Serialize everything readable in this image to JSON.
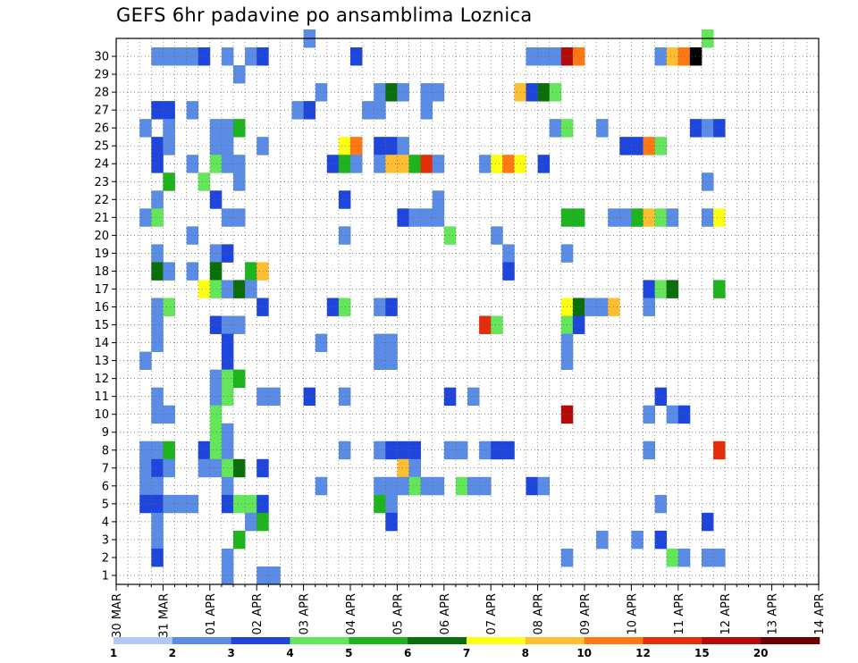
{
  "chart_data": {
    "type": "heatmap",
    "title": "GEFS 6hr padavine po ansamblima Loznica",
    "xlabel": "",
    "ylabel": "",
    "x_tick_labels": [
      "30 MAR",
      "31 MAR",
      "01 APR",
      "02 APR",
      "03 APR",
      "04 APR",
      "05 APR",
      "06 APR",
      "07 APR",
      "08 APR",
      "09 APR",
      "10 APR",
      "11 APR",
      "12 APR",
      "13 APR",
      "14 APR"
    ],
    "y_tick_labels": [
      "1",
      "2",
      "3",
      "4",
      "5",
      "6",
      "7",
      "8",
      "9",
      "10",
      "11",
      "12",
      "13",
      "14",
      "15",
      "16",
      "17",
      "18",
      "19",
      "20",
      "21",
      "22",
      "23",
      "24",
      "25",
      "26",
      "27",
      "28",
      "29",
      "30"
    ],
    "ylim": [
      1,
      30
    ],
    "time_steps": 60,
    "grid": true,
    "legend": {
      "position": "bottom",
      "levels": [
        "1",
        "2",
        "3",
        "4",
        "5",
        "6",
        "7",
        "8",
        "10",
        "12",
        "15",
        "20"
      ],
      "colors": [
        "#b4c8f5",
        "#5a8ce6",
        "#1e46dc",
        "#64e65a",
        "#1eb41e",
        "#0a6e0a",
        "#ffff14",
        "#ffbe32",
        "#ff7814",
        "#e62d0a",
        "#b40a0a",
        "#6e0000"
      ]
    },
    "cells": [
      [
        29,
        3,
        1
      ],
      [
        29,
        4,
        1
      ],
      [
        29,
        5,
        1
      ],
      [
        29,
        6,
        1
      ],
      [
        29,
        7,
        2
      ],
      [
        29,
        9,
        1
      ],
      [
        29,
        11,
        1
      ],
      [
        29,
        12,
        2
      ],
      [
        29,
        20,
        2
      ],
      [
        29,
        35,
        1
      ],
      [
        29,
        36,
        1
      ],
      [
        29,
        37,
        1
      ],
      [
        29,
        38,
        10
      ],
      [
        29,
        39,
        8
      ],
      [
        29,
        46,
        1
      ],
      [
        29,
        47,
        7
      ],
      [
        29,
        48,
        8
      ],
      [
        29,
        49,
        12
      ],
      [
        30,
        16,
        1
      ],
      [
        30,
        50,
        3
      ],
      [
        28,
        10,
        1
      ],
      [
        27,
        17,
        1
      ],
      [
        27,
        22,
        1
      ],
      [
        27,
        23,
        5
      ],
      [
        27,
        24,
        1
      ],
      [
        27,
        26,
        1
      ],
      [
        27,
        27,
        1
      ],
      [
        27,
        34,
        7
      ],
      [
        27,
        35,
        2
      ],
      [
        27,
        36,
        5
      ],
      [
        27,
        37,
        3
      ],
      [
        26,
        3,
        2
      ],
      [
        26,
        4,
        2
      ],
      [
        26,
        6,
        1
      ],
      [
        26,
        15,
        1
      ],
      [
        26,
        16,
        2
      ],
      [
        26,
        21,
        1
      ],
      [
        26,
        22,
        1
      ],
      [
        26,
        26,
        1
      ],
      [
        25,
        2,
        1
      ],
      [
        25,
        4,
        1
      ],
      [
        25,
        8,
        1
      ],
      [
        25,
        9,
        1
      ],
      [
        25,
        10,
        4
      ],
      [
        25,
        37,
        1
      ],
      [
        25,
        38,
        3
      ],
      [
        25,
        41,
        1
      ],
      [
        25,
        49,
        2
      ],
      [
        25,
        50,
        1
      ],
      [
        25,
        51,
        2
      ],
      [
        24,
        3,
        2
      ],
      [
        24,
        4,
        1
      ],
      [
        24,
        8,
        1
      ],
      [
        24,
        9,
        1
      ],
      [
        24,
        12,
        1
      ],
      [
        24,
        19,
        6
      ],
      [
        24,
        20,
        8
      ],
      [
        24,
        22,
        2
      ],
      [
        24,
        23,
        2
      ],
      [
        24,
        24,
        1
      ],
      [
        24,
        43,
        2
      ],
      [
        24,
        44,
        2
      ],
      [
        24,
        45,
        8
      ],
      [
        24,
        46,
        3
      ],
      [
        23,
        3,
        2
      ],
      [
        23,
        6,
        1
      ],
      [
        23,
        8,
        3
      ],
      [
        23,
        9,
        1
      ],
      [
        23,
        10,
        1
      ],
      [
        23,
        18,
        2
      ],
      [
        23,
        19,
        4
      ],
      [
        23,
        20,
        1
      ],
      [
        23,
        22,
        1
      ],
      [
        23,
        23,
        7
      ],
      [
        23,
        24,
        7
      ],
      [
        23,
        25,
        4
      ],
      [
        23,
        26,
        9
      ],
      [
        23,
        27,
        1
      ],
      [
        23,
        31,
        1
      ],
      [
        23,
        32,
        6
      ],
      [
        23,
        33,
        8
      ],
      [
        23,
        34,
        6
      ],
      [
        23,
        36,
        2
      ],
      [
        22,
        4,
        4
      ],
      [
        22,
        7,
        3
      ],
      [
        22,
        10,
        1
      ],
      [
        22,
        50,
        1
      ],
      [
        21,
        3,
        1
      ],
      [
        21,
        8,
        2
      ],
      [
        21,
        19,
        2
      ],
      [
        21,
        27,
        1
      ],
      [
        20,
        2,
        1
      ],
      [
        20,
        3,
        3
      ],
      [
        20,
        9,
        1
      ],
      [
        20,
        10,
        1
      ],
      [
        20,
        24,
        2
      ],
      [
        20,
        25,
        1
      ],
      [
        20,
        26,
        1
      ],
      [
        20,
        27,
        1
      ],
      [
        20,
        38,
        4
      ],
      [
        20,
        39,
        4
      ],
      [
        20,
        42,
        1
      ],
      [
        20,
        43,
        1
      ],
      [
        20,
        44,
        4
      ],
      [
        20,
        45,
        7
      ],
      [
        20,
        46,
        3
      ],
      [
        20,
        47,
        1
      ],
      [
        20,
        50,
        1
      ],
      [
        20,
        51,
        6
      ],
      [
        19,
        6,
        1
      ],
      [
        19,
        19,
        1
      ],
      [
        19,
        28,
        3
      ],
      [
        19,
        32,
        1
      ],
      [
        18,
        3,
        1
      ],
      [
        18,
        8,
        1
      ],
      [
        18,
        9,
        2
      ],
      [
        18,
        33,
        1
      ],
      [
        18,
        38,
        1
      ],
      [
        17,
        3,
        5
      ],
      [
        17,
        4,
        1
      ],
      [
        17,
        6,
        1
      ],
      [
        17,
        8,
        5
      ],
      [
        17,
        11,
        4
      ],
      [
        17,
        12,
        7
      ],
      [
        17,
        33,
        2
      ],
      [
        16,
        7,
        6
      ],
      [
        16,
        8,
        3
      ],
      [
        16,
        9,
        1
      ],
      [
        16,
        10,
        5
      ],
      [
        16,
        11,
        1
      ],
      [
        16,
        45,
        2
      ],
      [
        16,
        46,
        3
      ],
      [
        16,
        47,
        5
      ],
      [
        16,
        51,
        4
      ],
      [
        15,
        3,
        1
      ],
      [
        15,
        4,
        3
      ],
      [
        15,
        12,
        2
      ],
      [
        15,
        18,
        2
      ],
      [
        15,
        19,
        3
      ],
      [
        15,
        22,
        1
      ],
      [
        15,
        23,
        2
      ],
      [
        15,
        38,
        6
      ],
      [
        15,
        39,
        5
      ],
      [
        15,
        40,
        1
      ],
      [
        15,
        41,
        1
      ],
      [
        15,
        42,
        7
      ],
      [
        15,
        45,
        1
      ],
      [
        14,
        3,
        1
      ],
      [
        14,
        8,
        2
      ],
      [
        14,
        9,
        1
      ],
      [
        14,
        10,
        1
      ],
      [
        14,
        31,
        9
      ],
      [
        14,
        32,
        3
      ],
      [
        14,
        38,
        3
      ],
      [
        14,
        39,
        2
      ],
      [
        13,
        3,
        1
      ],
      [
        13,
        9,
        2
      ],
      [
        13,
        17,
        1
      ],
      [
        13,
        22,
        1
      ],
      [
        13,
        23,
        1
      ],
      [
        13,
        38,
        1
      ],
      [
        12,
        2,
        1
      ],
      [
        12,
        9,
        2
      ],
      [
        12,
        22,
        1
      ],
      [
        12,
        23,
        1
      ],
      [
        12,
        38,
        1
      ],
      [
        11,
        8,
        1
      ],
      [
        11,
        9,
        3
      ],
      [
        11,
        10,
        4
      ],
      [
        10,
        3,
        1
      ],
      [
        10,
        8,
        1
      ],
      [
        10,
        9,
        3
      ],
      [
        10,
        12,
        1
      ],
      [
        10,
        13,
        1
      ],
      [
        10,
        16,
        2
      ],
      [
        10,
        19,
        1
      ],
      [
        10,
        28,
        2
      ],
      [
        10,
        30,
        1
      ],
      [
        10,
        46,
        2
      ],
      [
        9,
        3,
        1
      ],
      [
        9,
        4,
        1
      ],
      [
        9,
        8,
        3
      ],
      [
        9,
        38,
        10
      ],
      [
        9,
        45,
        1
      ],
      [
        9,
        47,
        1
      ],
      [
        9,
        48,
        2
      ],
      [
        8,
        8,
        3
      ],
      [
        8,
        9,
        1
      ],
      [
        7,
        2,
        1
      ],
      [
        7,
        3,
        1
      ],
      [
        7,
        4,
        4
      ],
      [
        7,
        7,
        2
      ],
      [
        7,
        8,
        3
      ],
      [
        7,
        9,
        1
      ],
      [
        7,
        19,
        1
      ],
      [
        7,
        22,
        1
      ],
      [
        7,
        23,
        2
      ],
      [
        7,
        24,
        2
      ],
      [
        7,
        25,
        2
      ],
      [
        7,
        28,
        1
      ],
      [
        7,
        29,
        1
      ],
      [
        7,
        31,
        1
      ],
      [
        7,
        32,
        2
      ],
      [
        7,
        33,
        2
      ],
      [
        7,
        45,
        1
      ],
      [
        7,
        51,
        9
      ],
      [
        6,
        2,
        1
      ],
      [
        6,
        3,
        2
      ],
      [
        6,
        4,
        1
      ],
      [
        6,
        7,
        1
      ],
      [
        6,
        8,
        1
      ],
      [
        6,
        9,
        3
      ],
      [
        6,
        10,
        5
      ],
      [
        6,
        12,
        2
      ],
      [
        6,
        24,
        7
      ],
      [
        6,
        25,
        1
      ],
      [
        5,
        2,
        1
      ],
      [
        5,
        3,
        1
      ],
      [
        5,
        9,
        1
      ],
      [
        5,
        17,
        1
      ],
      [
        5,
        22,
        1
      ],
      [
        5,
        23,
        1
      ],
      [
        5,
        24,
        1
      ],
      [
        5,
        25,
        3
      ],
      [
        5,
        26,
        1
      ],
      [
        5,
        27,
        1
      ],
      [
        5,
        29,
        3
      ],
      [
        5,
        30,
        1
      ],
      [
        5,
        31,
        1
      ],
      [
        5,
        35,
        2
      ],
      [
        5,
        36,
        1
      ],
      [
        4,
        2,
        2
      ],
      [
        4,
        3,
        2
      ],
      [
        4,
        4,
        1
      ],
      [
        4,
        5,
        1
      ],
      [
        4,
        6,
        1
      ],
      [
        4,
        9,
        2
      ],
      [
        4,
        10,
        3
      ],
      [
        4,
        11,
        3
      ],
      [
        4,
        12,
        2
      ],
      [
        4,
        22,
        4
      ],
      [
        4,
        23,
        1
      ],
      [
        4,
        46,
        1
      ],
      [
        3,
        3,
        1
      ],
      [
        3,
        11,
        1
      ],
      [
        3,
        12,
        4
      ],
      [
        3,
        23,
        2
      ],
      [
        3,
        50,
        2
      ],
      [
        2,
        3,
        1
      ],
      [
        2,
        10,
        4
      ],
      [
        2,
        41,
        1
      ],
      [
        2,
        44,
        1
      ],
      [
        2,
        46,
        2
      ],
      [
        1,
        3,
        2
      ],
      [
        1,
        9,
        1
      ],
      [
        1,
        38,
        1
      ],
      [
        1,
        47,
        3
      ],
      [
        1,
        48,
        1
      ],
      [
        1,
        50,
        1
      ],
      [
        1,
        51,
        1
      ],
      [
        0,
        9,
        1
      ],
      [
        0,
        12,
        1
      ],
      [
        0,
        13,
        1
      ]
    ]
  }
}
